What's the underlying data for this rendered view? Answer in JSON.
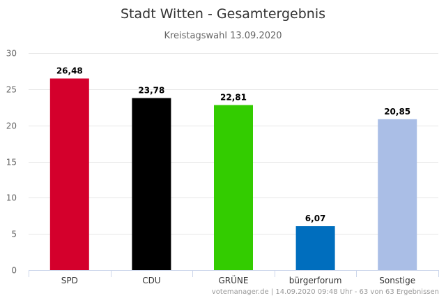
{
  "chart_data": {
    "type": "bar",
    "title": "Stadt Witten - Gesamtergebnis",
    "subtitle": "Kreistagswahl 13.09.2020",
    "categories": [
      "SPD",
      "CDU",
      "GRÜNE",
      "bürgerforum",
      "Sonstige"
    ],
    "values": [
      26.48,
      23.78,
      22.81,
      6.07,
      20.85
    ],
    "value_labels": [
      "26,48",
      "23,78",
      "22,81",
      "6,07",
      "20,85"
    ],
    "colors": [
      "#d4002c",
      "#000000",
      "#33cc00",
      "#006ebe",
      "#aabee6"
    ],
    "ylim": [
      0,
      30
    ],
    "yticks": [
      0,
      5,
      10,
      15,
      20,
      25,
      30
    ],
    "grid": true,
    "legend": "none"
  },
  "credit": "votemanager.de | 14.09.2020 09:48 Uhr - 63 von 63 Ergebnissen"
}
